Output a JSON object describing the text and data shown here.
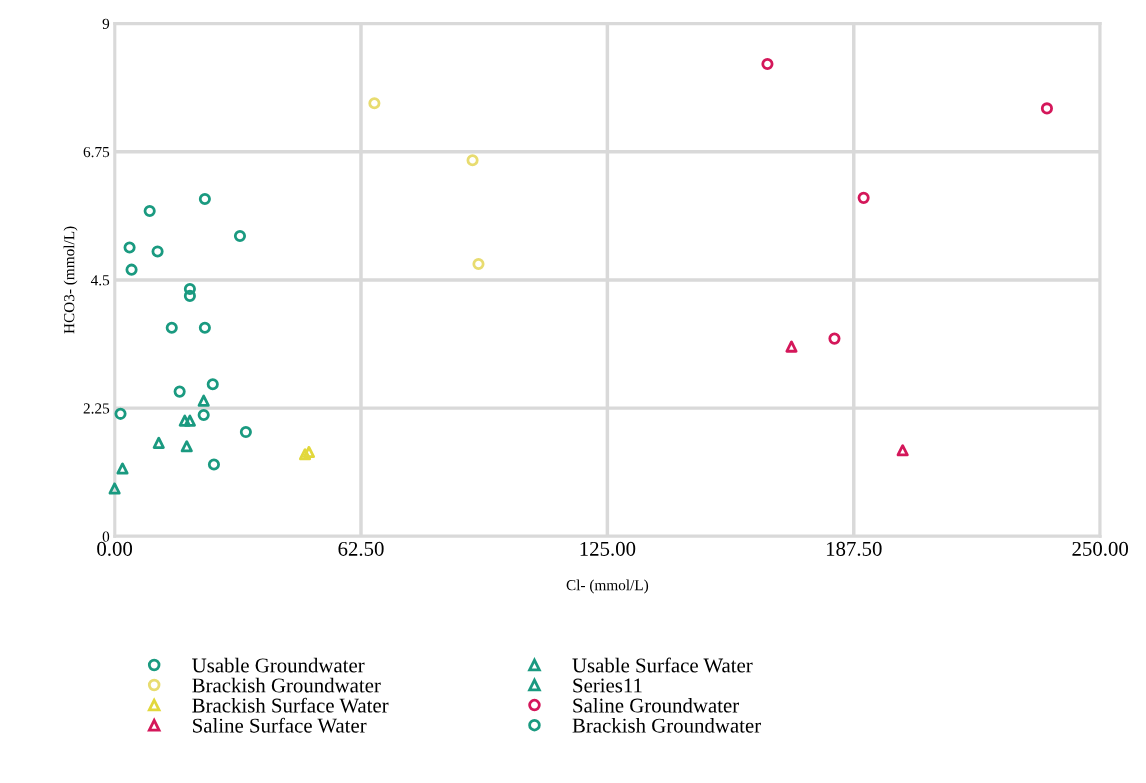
{
  "chart_data": {
    "type": "scatter",
    "xlabel": "Cl- (mmol/L)",
    "ylabel": "HCO3- (mmol/L)",
    "xlim": [
      0,
      250
    ],
    "xticks": [
      {
        "value": 0,
        "label": "0.00"
      },
      {
        "value": 62.5,
        "label": "62.50"
      },
      {
        "value": 125,
        "label": "125.00"
      },
      {
        "value": 187.5,
        "label": "187.50"
      },
      {
        "value": 250,
        "label": "250.00"
      }
    ],
    "ylim": [
      0,
      9
    ],
    "yticks": [
      0,
      2.25,
      4.5,
      6.75,
      9
    ],
    "grid": true,
    "legend": "bottom",
    "series": [
      {
        "name": "Usable Groundwater",
        "color": "#1a9a80",
        "marker": "circle",
        "x": [
          22.9,
          8.9,
          31.8,
          3.8,
          10.9,
          4.3,
          19.1,
          19.1,
          14.5,
          22.9,
          16.5,
          24.9,
          1.5,
          22.6,
          33.3,
          25.2
        ],
        "values": [
          5.92,
          5.71,
          5.27,
          5.07,
          5.0,
          4.68,
          4.34,
          4.22,
          3.66,
          3.66,
          2.54,
          2.67,
          2.15,
          2.13,
          1.83,
          1.26
        ]
      },
      {
        "name": "Brackish Groundwater",
        "color": "#e8dc70",
        "marker": "circle",
        "x": [
          65.9,
          90.8,
          92.3
        ],
        "values": [
          7.6,
          6.6,
          4.78
        ]
      },
      {
        "name": "Brackish Surface Water",
        "color": "#e2d83c",
        "marker": "triangle",
        "x": [
          48.3,
          49.3
        ],
        "values": [
          1.44,
          1.48
        ]
      },
      {
        "name": "Saline Surface Water",
        "color": "#d4175a",
        "marker": "triangle",
        "x": [
          171.7,
          199.9
        ],
        "values": [
          3.33,
          1.51
        ]
      },
      {
        "name": "Usable Surface Water",
        "color": "#1a9a80",
        "marker": "triangle",
        "x": [
          22.6,
          17.8,
          19.1,
          11.2,
          18.3,
          2.0
        ],
        "values": [
          2.38,
          2.03,
          2.03,
          1.64,
          1.58,
          1.19
        ]
      },
      {
        "name": "Series11",
        "color": "#1a9a80",
        "marker": "triangle",
        "x": [
          0
        ],
        "values": [
          0.84
        ]
      },
      {
        "name": "Saline Groundwater",
        "color": "#d4175a",
        "marker": "circle",
        "x": [
          165.6,
          236.5,
          190.0,
          182.6
        ],
        "values": [
          8.29,
          7.51,
          5.94,
          3.47
        ]
      },
      {
        "name": "Brackish Groundwater",
        "color": "#1a9a80",
        "marker": "circle"
      }
    ]
  }
}
